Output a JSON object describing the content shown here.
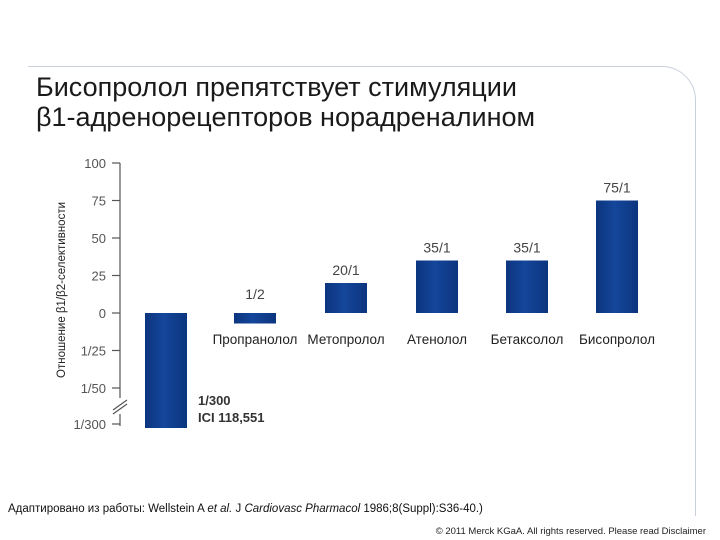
{
  "title_line1": "Бисопролол препятствует стимуляции",
  "title_line2": "β1-адренорецепторов норадреналином",
  "source": {
    "prefix": "Адаптировано из работы: Wellstein A ",
    "etal": "et al.",
    "mid": " J ",
    "journal": "Cardiovasc Pharmacol",
    "suffix": " 1986;8(Suppl):S36-40.)"
  },
  "copyright": "© 2011 Merck KGaA. All rights reserved. Please read Disclaimer",
  "chart_data": {
    "type": "bar",
    "ylabel": "Отношение β1/β2-селективности",
    "yticks": [
      "100",
      "75",
      "50",
      "25",
      "0",
      "1/25",
      "1/50",
      "1/300"
    ],
    "ylim": [
      -80,
      100
    ],
    "categories": [
      "ICI 118,551",
      "Пропранолол",
      "Метопролол",
      "Атенолол",
      "Бетаксолол",
      "Бисопролол"
    ],
    "values": [
      -75,
      -7,
      20,
      35,
      35,
      75
    ],
    "data_labels": [
      "1/300",
      "1/2",
      "20/1",
      "35/1",
      "35/1",
      "75/1"
    ],
    "annotation_line1": "1/300",
    "annotation_line2": "ICI 118,551",
    "bar_color": "#0e3b8c",
    "axis_break": true
  }
}
